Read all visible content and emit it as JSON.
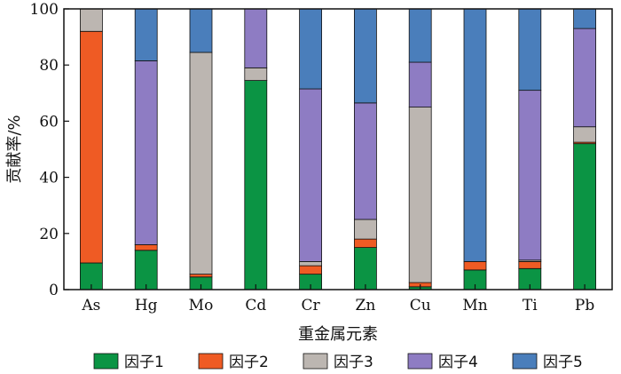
{
  "chart_data": {
    "type": "bar",
    "stacked": true,
    "xlabel": "重金属元素",
    "ylabel": "贡献率/%",
    "ylim": [
      0,
      100
    ],
    "yticks": [
      0,
      20,
      40,
      60,
      80,
      100
    ],
    "grid": false,
    "legend_position": "bottom",
    "categories": [
      "As",
      "Hg",
      "Mo",
      "Cd",
      "Cr",
      "Zn",
      "Cu",
      "Mn",
      "Ti",
      "Pb"
    ],
    "series": [
      {
        "name": "因子1",
        "color": "#0b9444",
        "values": [
          9.5,
          14,
          4.5,
          74.5,
          5.5,
          15,
          1,
          7,
          7.5,
          52
        ]
      },
      {
        "name": "因子2",
        "color": "#ef5b24",
        "values": [
          82.5,
          2,
          1,
          0,
          3,
          3,
          1.5,
          3,
          2.5,
          0.5
        ]
      },
      {
        "name": "因子3",
        "color": "#bcb6b1",
        "values": [
          8,
          0,
          79,
          4.5,
          1.5,
          7,
          62.5,
          0,
          0.5,
          5.5
        ]
      },
      {
        "name": "因子4",
        "color": "#8e7cc3",
        "values": [
          0,
          65.5,
          0,
          21,
          61.5,
          41.5,
          16,
          0,
          60.5,
          35
        ]
      },
      {
        "name": "因子5",
        "color": "#4a7ebb",
        "values": [
          0,
          18.5,
          15.5,
          0,
          28.5,
          33.5,
          19,
          90,
          29,
          7
        ]
      }
    ]
  }
}
